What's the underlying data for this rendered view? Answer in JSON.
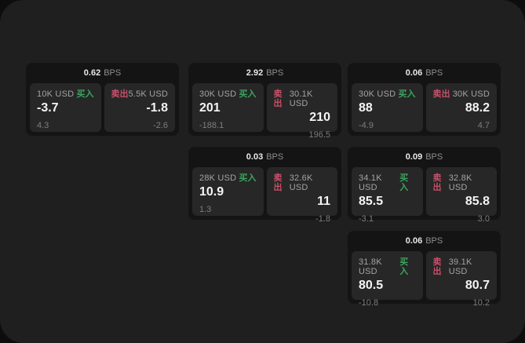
{
  "labels": {
    "bps_unit": "BPS",
    "buy": "买入",
    "sell": "卖出"
  },
  "colors": {
    "buy_green": "#3ca45f",
    "sell_red": "#c8506a",
    "panel_bg": "#1f1f1f",
    "card_bg": "#141414",
    "cell_bg": "#272727"
  },
  "cards": [
    {
      "bps": "0.62",
      "buy": {
        "amount": "10K USD",
        "price": "-3.7",
        "delta": "4.3"
      },
      "sell": {
        "amount": "5.5K USD",
        "price": "-1.8",
        "delta": "-2.6"
      }
    },
    {
      "bps": "2.92",
      "buy": {
        "amount": "30K USD",
        "price": "201",
        "delta": "-188.1"
      },
      "sell": {
        "amount": "30.1K USD",
        "price": "210",
        "delta": "196.5"
      }
    },
    {
      "bps": "0.06",
      "buy": {
        "amount": "30K USD",
        "price": "88",
        "delta": "-4.9"
      },
      "sell": {
        "amount": "30K USD",
        "price": "88.2",
        "delta": "4.7"
      }
    },
    {
      "bps": "0.03",
      "buy": {
        "amount": "28K USD",
        "price": "10.9",
        "delta": "1.3"
      },
      "sell": {
        "amount": "32.6K USD",
        "price": "11",
        "delta": "-1.8"
      }
    },
    {
      "bps": "0.09",
      "buy": {
        "amount": "34.1K USD",
        "price": "85.5",
        "delta": "-3.1"
      },
      "sell": {
        "amount": "32.8K USD",
        "price": "85.8",
        "delta": "3.0"
      }
    },
    {
      "bps": "0.06",
      "buy": {
        "amount": "31.8K USD",
        "price": "80.5",
        "delta": "-10.8"
      },
      "sell": {
        "amount": "39.1K USD",
        "price": "80.7",
        "delta": "10.2"
      }
    }
  ]
}
